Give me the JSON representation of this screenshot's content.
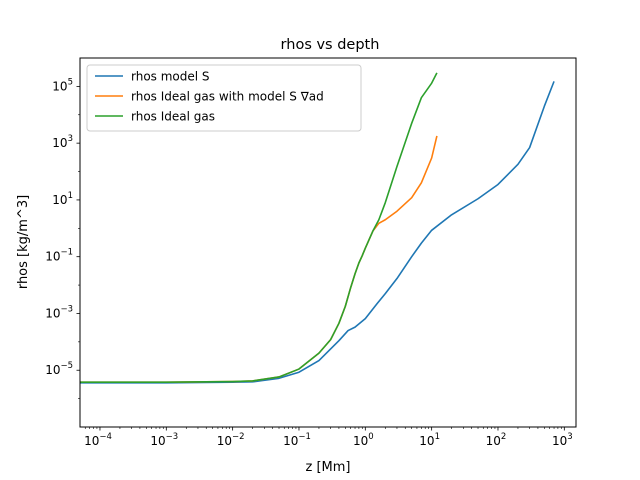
{
  "chart_data": {
    "type": "line",
    "title": "rhos vs depth",
    "xlabel": "z [Mm]",
    "ylabel": "rhos [kg/m^3]",
    "x_scale": "log",
    "y_scale": "log",
    "xlim": [
      5e-05,
      1500
    ],
    "ylim": [
      1e-07,
      1000000
    ],
    "grid": false,
    "legend_position": "top-left",
    "x_ticks": [
      {
        "value": 0.0001,
        "base": "10",
        "exp": "−4"
      },
      {
        "value": 0.001,
        "base": "10",
        "exp": "−3"
      },
      {
        "value": 0.01,
        "base": "10",
        "exp": "−2"
      },
      {
        "value": 0.1,
        "base": "10",
        "exp": "−1"
      },
      {
        "value": 1,
        "base": "10",
        "exp": "0"
      },
      {
        "value": 10,
        "base": "10",
        "exp": "1"
      },
      {
        "value": 100,
        "base": "10",
        "exp": "2"
      },
      {
        "value": 1000,
        "base": "10",
        "exp": "3"
      }
    ],
    "y_ticks": [
      {
        "value": 1e-05,
        "base": "10",
        "exp": "−5"
      },
      {
        "value": 0.001,
        "base": "10",
        "exp": "−3"
      },
      {
        "value": 0.1,
        "base": "10",
        "exp": "−1"
      },
      {
        "value": 10,
        "base": "10",
        "exp": "1"
      },
      {
        "value": 1000,
        "base": "10",
        "exp": "3"
      },
      {
        "value": 100000,
        "base": "10",
        "exp": "5"
      }
    ],
    "series": [
      {
        "name": "rhos model S",
        "color": "#1f77b4",
        "points": [
          [
            5e-05,
            3.6e-06
          ],
          [
            0.001,
            3.6e-06
          ],
          [
            0.01,
            3.8e-06
          ],
          [
            0.02,
            3.9e-06
          ],
          [
            0.05,
            5.2e-06
          ],
          [
            0.1,
            8.5e-06
          ],
          [
            0.2,
            2.2e-05
          ],
          [
            0.4,
            0.00011
          ],
          [
            0.55,
            0.00025
          ],
          [
            0.7,
            0.00033
          ],
          [
            1,
            0.00066
          ],
          [
            1.5,
            0.0022
          ],
          [
            2,
            0.005
          ],
          [
            3,
            0.017
          ],
          [
            5,
            0.1
          ],
          [
            7,
            0.3
          ],
          [
            10,
            0.85
          ],
          [
            20,
            3
          ],
          [
            50,
            11
          ],
          [
            100,
            35
          ],
          [
            200,
            180
          ],
          [
            300,
            700
          ],
          [
            500,
            20000
          ],
          [
            700,
            150000
          ]
        ]
      },
      {
        "name": "rhos Ideal gas with model S ∇ad",
        "color": "#ff7f0e",
        "points": [
          [
            5e-05,
            3.8e-06
          ],
          [
            0.001,
            3.8e-06
          ],
          [
            0.01,
            4e-06
          ],
          [
            0.02,
            4.2e-06
          ],
          [
            0.05,
            5.8e-06
          ],
          [
            0.1,
            1.1e-05
          ],
          [
            0.2,
            4e-05
          ],
          [
            0.3,
            0.00012
          ],
          [
            0.4,
            0.00045
          ],
          [
            0.5,
            0.0018
          ],
          [
            0.6,
            0.008
          ],
          [
            0.7,
            0.025
          ],
          [
            0.8,
            0.06
          ],
          [
            0.9,
            0.11
          ],
          [
            1,
            0.2
          ],
          [
            1.3,
            0.8
          ],
          [
            1.6,
            1.5
          ],
          [
            2,
            2
          ],
          [
            3,
            4
          ],
          [
            5,
            12
          ],
          [
            7,
            40
          ],
          [
            10,
            300
          ],
          [
            12,
            1800
          ]
        ]
      },
      {
        "name": "rhos Ideal gas",
        "color": "#2ca02c",
        "points": [
          [
            5e-05,
            3.8e-06
          ],
          [
            0.001,
            3.8e-06
          ],
          [
            0.01,
            4e-06
          ],
          [
            0.02,
            4.2e-06
          ],
          [
            0.05,
            5.8e-06
          ],
          [
            0.1,
            1.1e-05
          ],
          [
            0.2,
            4e-05
          ],
          [
            0.3,
            0.00012
          ],
          [
            0.4,
            0.00045
          ],
          [
            0.5,
            0.0018
          ],
          [
            0.6,
            0.008
          ],
          [
            0.7,
            0.025
          ],
          [
            0.8,
            0.06
          ],
          [
            0.9,
            0.11
          ],
          [
            1,
            0.2
          ],
          [
            1.3,
            0.8
          ],
          [
            1.6,
            2
          ],
          [
            2,
            8
          ],
          [
            3,
            150
          ],
          [
            5,
            5000
          ],
          [
            7,
            40000
          ],
          [
            10,
            130000
          ],
          [
            12,
            300000
          ]
        ]
      }
    ]
  }
}
